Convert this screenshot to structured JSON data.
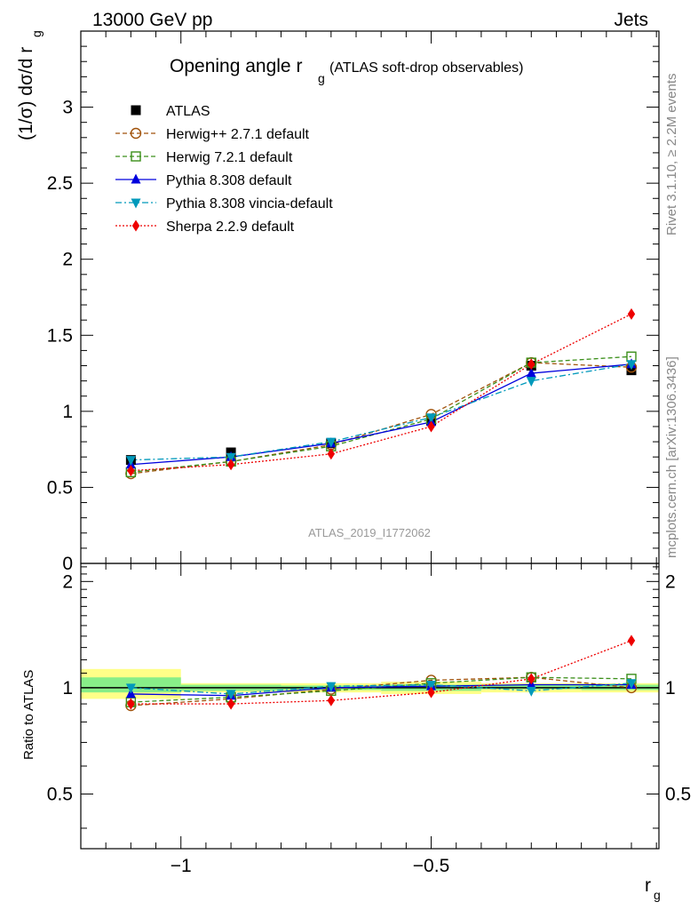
{
  "header": {
    "left": "13000 GeV pp",
    "right": "Jets"
  },
  "main_panel": {
    "title": "Opening angle r",
    "title_sub": "g",
    "title_suffix": "(ATLAS soft-drop observables)",
    "ylabel": "(1/σ) dσ/d r",
    "ylabel_sub": "g",
    "watermark": "ATLAS_2019_I1772062"
  },
  "ratio_panel": {
    "ylabel": "Ratio to ATLAS"
  },
  "xaxis": {
    "label": "r",
    "label_sub": "g"
  },
  "side_text": {
    "rivet": "Rivet 3.1.10, ≥ 2.2M events",
    "mcplots": "mcplots.cern.ch [arXiv:1306.3436]"
  },
  "legend": [
    {
      "label": "ATLAS"
    },
    {
      "label": "Herwig++ 2.7.1 default"
    },
    {
      "label": "Herwig 7.2.1 default"
    },
    {
      "label": "Pythia 8.308 default"
    },
    {
      "label": "Pythia 8.308 vincia-default"
    },
    {
      "label": "Sherpa 2.2.9 default"
    }
  ],
  "chart_data": [
    {
      "type": "line",
      "panel": "main",
      "x": [
        -1.1,
        -0.9,
        -0.7,
        -0.5,
        -0.3,
        -0.1
      ],
      "xlim": [
        -1.2,
        -0.045
      ],
      "ylim": [
        0,
        3.5
      ],
      "yticks": [
        0,
        0.5,
        1,
        1.5,
        2,
        2.5,
        3
      ],
      "ytick_labels": [
        "0",
        "0.5",
        "1",
        "1.5",
        "2",
        "2.5",
        "3"
      ],
      "series": [
        {
          "name": "ATLAS",
          "color": "#000000",
          "marker": "square-filled",
          "line": "none",
          "values": [
            0.68,
            0.73,
            0.79,
            0.94,
            1.3,
            1.27
          ]
        },
        {
          "name": "Herwig++ 2.7.1 default",
          "color": "#a0520a",
          "marker": "circle-open",
          "line": "dashed",
          "values": [
            0.59,
            0.67,
            0.78,
            0.98,
            1.32,
            1.29
          ]
        },
        {
          "name": "Herwig 7.2.1 default",
          "color": "#3b8f1a",
          "marker": "square-open",
          "line": "dashed",
          "values": [
            0.6,
            0.67,
            0.77,
            0.95,
            1.32,
            1.36
          ]
        },
        {
          "name": "Pythia 8.308 default",
          "color": "#0000dd",
          "marker": "triangle-up",
          "line": "solid",
          "values": [
            0.65,
            0.7,
            0.79,
            0.93,
            1.25,
            1.31
          ]
        },
        {
          "name": "Pythia 8.308 vincia-default",
          "color": "#0099bb",
          "marker": "triangle-down",
          "line": "dashdot",
          "values": [
            0.68,
            0.7,
            0.8,
            0.96,
            1.2,
            1.31
          ]
        },
        {
          "name": "Sherpa 2.2.9 default",
          "color": "#ee0000",
          "marker": "diamond",
          "line": "dotted",
          "values": [
            0.61,
            0.65,
            0.72,
            0.9,
            1.31,
            1.64
          ]
        }
      ]
    },
    {
      "type": "line",
      "panel": "ratio",
      "x": [
        -1.1,
        -0.9,
        -0.7,
        -0.5,
        -0.3,
        -0.1
      ],
      "xlim": [
        -1.2,
        -0.045
      ],
      "ylim": [
        0.35,
        2.25
      ],
      "xticks": [
        -1,
        -0.5
      ],
      "xtick_labels": [
        "−1",
        "−0.5"
      ],
      "yticks": [
        0.5,
        1,
        2
      ],
      "ytick_labels": [
        "0.5",
        "1",
        "2"
      ],
      "bands": {
        "edges": [
          -1.2,
          -1.0,
          -0.8,
          -0.6,
          -0.4,
          -0.2,
          -0.045
        ],
        "outer": [
          [
            0.93,
            1.13
          ],
          [
            0.97,
            1.03
          ],
          [
            0.97,
            1.03
          ],
          [
            0.96,
            1.04
          ],
          [
            0.97,
            1.03
          ],
          [
            0.97,
            1.03
          ]
        ],
        "inner": [
          [
            0.97,
            1.07
          ],
          [
            0.98,
            1.02
          ],
          [
            0.985,
            1.015
          ],
          [
            0.98,
            1.02
          ],
          [
            0.99,
            1.02
          ],
          [
            0.985,
            1.02
          ]
        ],
        "outer_color": "#ffff88",
        "inner_color": "#88ee88"
      },
      "series": [
        {
          "name": "Herwig++ 2.7.1 default",
          "color": "#a0520a",
          "marker": "circle-open",
          "line": "dashed",
          "values": [
            0.89,
            0.93,
            0.99,
            1.05,
            1.07,
            1.0
          ]
        },
        {
          "name": "Herwig 7.2.1 default",
          "color": "#3b8f1a",
          "marker": "square-open",
          "line": "dashed",
          "values": [
            0.91,
            0.94,
            0.98,
            1.03,
            1.07,
            1.06
          ]
        },
        {
          "name": "Pythia 8.308 default",
          "color": "#0000dd",
          "marker": "triangle-up",
          "line": "solid",
          "values": [
            0.96,
            0.95,
            1.0,
            1.01,
            1.02,
            1.02
          ]
        },
        {
          "name": "Pythia 8.308 vincia-default",
          "color": "#0099bb",
          "marker": "triangle-down",
          "line": "dashdot",
          "values": [
            1.0,
            0.96,
            1.01,
            1.02,
            0.98,
            1.03
          ]
        },
        {
          "name": "Sherpa 2.2.9 default",
          "color": "#ee0000",
          "marker": "diamond",
          "line": "dotted",
          "values": [
            0.9,
            0.9,
            0.92,
            0.97,
            1.06,
            1.36
          ]
        }
      ]
    }
  ]
}
